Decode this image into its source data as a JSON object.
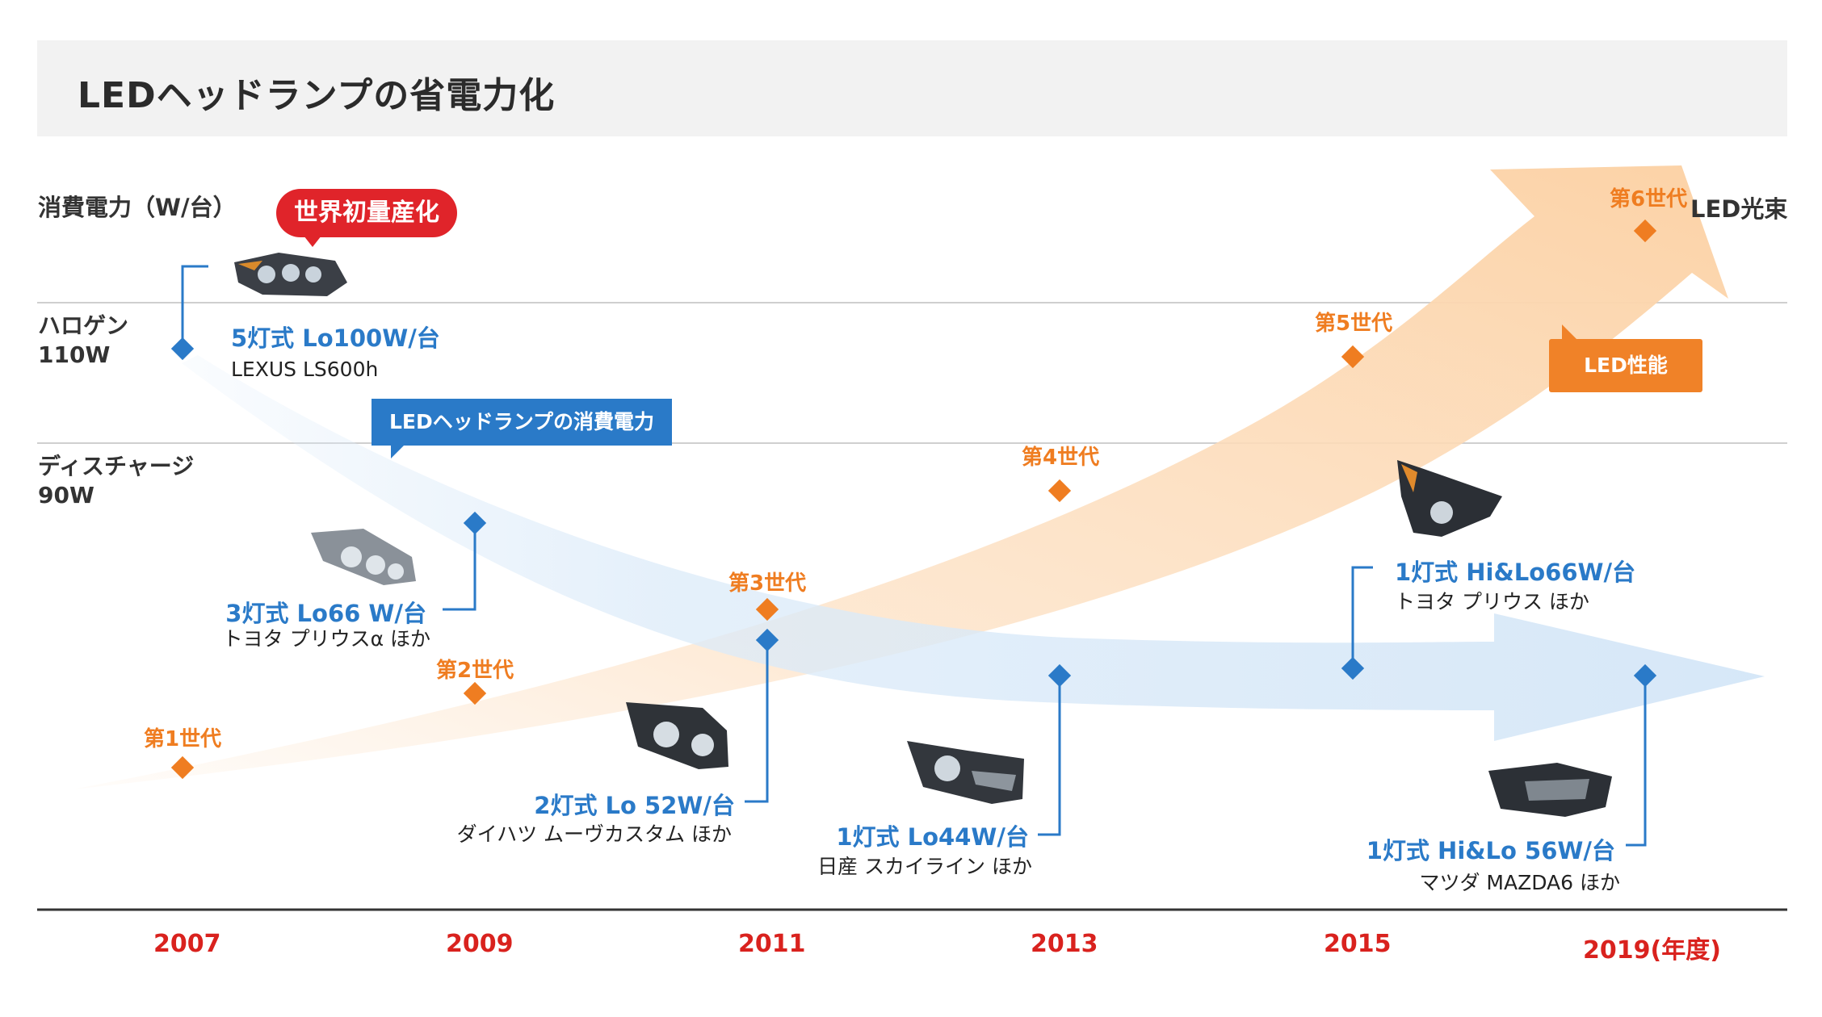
{
  "title": "LEDヘッドランプの省電力化",
  "y_caption": "消費電力（W/台）",
  "right_caption": "LED光束",
  "levels": [
    {
      "line1": "ハロゲン",
      "line2": "110W"
    },
    {
      "line1": "ディスチャージ",
      "line2": "90W"
    }
  ],
  "callouts": {
    "first_mass": "世界初量産化",
    "led_power": "LEDヘッドランプの消費電力",
    "led_perf": "LED性能"
  },
  "years": [
    "2007",
    "2009",
    "2011",
    "2013",
    "2015",
    "2019(年度)"
  ],
  "generations": [
    "第1世代",
    "第2世代",
    "第3世代",
    "第4世代",
    "第5世代",
    "第6世代"
  ],
  "products": [
    {
      "name": "5灯式 Lo100W/台",
      "car": "LEXUS LS600h"
    },
    {
      "name": "3灯式 Lo66 W/台",
      "car": "トヨタ プリウスα ほか"
    },
    {
      "name": "2灯式 Lo 52W/台",
      "car": "ダイハツ ムーヴカスタム ほか"
    },
    {
      "name": "1灯式 Lo44W/台",
      "car": "日産 スカイライン ほか"
    },
    {
      "name": "1灯式 Hi&Lo66W/台",
      "car": "トヨタ プリウス ほか"
    },
    {
      "name": "1灯式 Hi&Lo 56W/台",
      "car": "マツダ MAZDA6 ほか"
    }
  ],
  "colors": {
    "blue": "#2a7ac8",
    "orange": "#ef7d21",
    "red": "#d9221e",
    "title_bg": "#f2f2f2"
  },
  "icons": [
    "headlamp-image"
  ]
}
